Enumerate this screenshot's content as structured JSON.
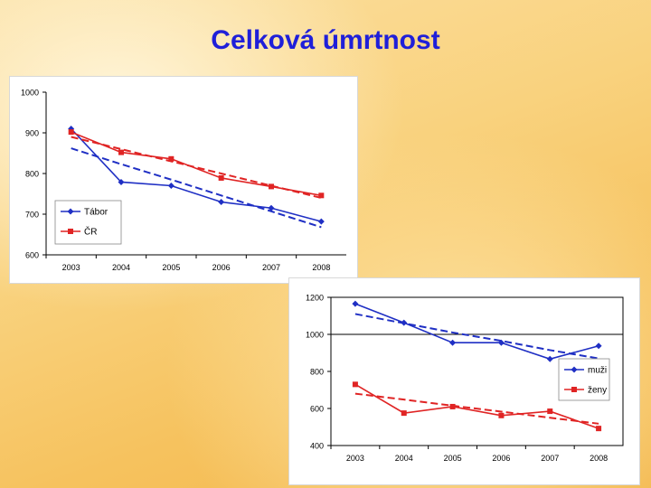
{
  "page": {
    "title": "Celková úmrtnost"
  },
  "chart_data": [
    {
      "type": "line",
      "categories": [
        "2003",
        "2004",
        "2005",
        "2006",
        "2007",
        "2008"
      ],
      "ylim": [
        600,
        1000
      ],
      "yticks": [
        "600",
        "700",
        "800",
        "900",
        "1000"
      ],
      "grid": false,
      "legend_position": "left",
      "series": [
        {
          "name": "Tábor",
          "color": "#1f2fc4",
          "marker": "diamond",
          "values": [
            910,
            779,
            770,
            730,
            715,
            682
          ],
          "trend": [
            862,
            823,
            785,
            746,
            707,
            668
          ]
        },
        {
          "name": "ČR",
          "color": "#e02424",
          "marker": "square",
          "values": [
            902,
            852,
            836,
            789,
            768,
            746
          ],
          "trend": [
            890,
            860,
            830,
            800,
            770,
            740
          ]
        }
      ]
    },
    {
      "type": "line",
      "categories": [
        "2003",
        "2004",
        "2005",
        "2006",
        "2007",
        "2008"
      ],
      "ylim": [
        400,
        1200
      ],
      "yticks": [
        "400",
        "600",
        "800",
        "1000",
        "1200"
      ],
      "grid": false,
      "reference_line": 1000,
      "legend_position": "right",
      "series": [
        {
          "name": "muži",
          "color": "#1f2fc4",
          "marker": "diamond",
          "values": [
            1165,
            1063,
            955,
            955,
            867,
            938
          ],
          "trend": [
            1110,
            1060,
            1010,
            965,
            915,
            870
          ]
        },
        {
          "name": "ženy",
          "color": "#e02424",
          "marker": "square",
          "values": [
            730,
            575,
            610,
            562,
            585,
            492
          ],
          "trend": [
            680,
            648,
            615,
            583,
            550,
            518
          ]
        }
      ]
    }
  ]
}
